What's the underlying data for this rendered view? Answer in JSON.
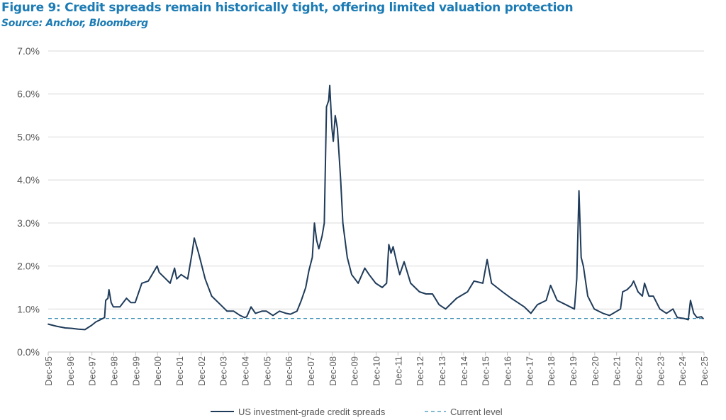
{
  "title": "Figure 9: Credit spreads remain historically tight, offering limited valuation protection",
  "subtitle": "Source: Anchor, Bloomberg",
  "chart_data": {
    "type": "line",
    "ylim": [
      0,
      7
    ],
    "yticks": [
      0,
      1,
      2,
      3,
      4,
      5,
      6,
      7
    ],
    "ytick_labels": [
      "0.0%",
      "1.0%",
      "2.0%",
      "3.0%",
      "4.0%",
      "5.0%",
      "6.0%",
      "7.0%"
    ],
    "xlim": [
      1995.92,
      2025.92
    ],
    "xtick_labels": [
      "Dec-95",
      "Dec-96",
      "Dec-97",
      "Dec-98",
      "Dec-99",
      "Dec-00",
      "Dec-01",
      "Dec-02",
      "Dec-03",
      "Dec-04",
      "Dec-05",
      "Dec-06",
      "Dec-07",
      "Dec-08",
      "Dec-09",
      "Dec-10",
      "Dec-11",
      "Dec-12",
      "Dec-13",
      "Dec-14",
      "Dec-15",
      "Dec-16",
      "Dec-17",
      "Dec-18",
      "Dec-19",
      "Dec-20",
      "Dec-21",
      "Dec-22",
      "Dec-23",
      "Dec-24",
      "Dec-25"
    ],
    "grid": "horizontal",
    "legend_position": "bottom",
    "colors": {
      "series": "#1f3b5a",
      "current": "#3a8fb7",
      "grid": "#d9d9d9"
    },
    "series": [
      {
        "name": "US investment-grade credit spreads",
        "points": [
          [
            1995.9,
            0.65
          ],
          [
            1996.3,
            0.6
          ],
          [
            1996.7,
            0.56
          ],
          [
            1997.0,
            0.55
          ],
          [
            1997.3,
            0.53
          ],
          [
            1997.6,
            0.52
          ],
          [
            1997.9,
            0.62
          ],
          [
            1998.1,
            0.7
          ],
          [
            1998.3,
            0.75
          ],
          [
            1998.5,
            0.8
          ],
          [
            1998.55,
            1.2
          ],
          [
            1998.65,
            1.25
          ],
          [
            1998.7,
            1.45
          ],
          [
            1998.8,
            1.15
          ],
          [
            1998.9,
            1.05
          ],
          [
            1999.2,
            1.05
          ],
          [
            1999.5,
            1.25
          ],
          [
            1999.7,
            1.15
          ],
          [
            1999.9,
            1.15
          ],
          [
            2000.2,
            1.6
          ],
          [
            2000.5,
            1.65
          ],
          [
            2000.9,
            2.0
          ],
          [
            2001.0,
            1.85
          ],
          [
            2001.3,
            1.7
          ],
          [
            2001.5,
            1.6
          ],
          [
            2001.7,
            1.95
          ],
          [
            2001.8,
            1.7
          ],
          [
            2002.0,
            1.8
          ],
          [
            2002.3,
            1.7
          ],
          [
            2002.5,
            2.3
          ],
          [
            2002.6,
            2.65
          ],
          [
            2002.8,
            2.3
          ],
          [
            2003.1,
            1.7
          ],
          [
            2003.4,
            1.3
          ],
          [
            2003.8,
            1.1
          ],
          [
            2004.1,
            0.95
          ],
          [
            2004.4,
            0.95
          ],
          [
            2004.7,
            0.85
          ],
          [
            2004.9,
            0.8
          ],
          [
            2005.0,
            0.82
          ],
          [
            2005.2,
            1.05
          ],
          [
            2005.4,
            0.9
          ],
          [
            2005.7,
            0.95
          ],
          [
            2005.9,
            0.95
          ],
          [
            2006.2,
            0.85
          ],
          [
            2006.5,
            0.95
          ],
          [
            2006.8,
            0.9
          ],
          [
            2007.0,
            0.88
          ],
          [
            2007.3,
            0.95
          ],
          [
            2007.5,
            1.2
          ],
          [
            2007.7,
            1.5
          ],
          [
            2007.85,
            1.9
          ],
          [
            2008.0,
            2.2
          ],
          [
            2008.1,
            3.0
          ],
          [
            2008.2,
            2.6
          ],
          [
            2008.3,
            2.4
          ],
          [
            2008.45,
            2.7
          ],
          [
            2008.55,
            3.0
          ],
          [
            2008.65,
            5.7
          ],
          [
            2008.75,
            5.85
          ],
          [
            2008.8,
            6.2
          ],
          [
            2008.9,
            5.2
          ],
          [
            2008.96,
            4.9
          ],
          [
            2009.05,
            5.5
          ],
          [
            2009.15,
            5.2
          ],
          [
            2009.3,
            4.0
          ],
          [
            2009.4,
            3.0
          ],
          [
            2009.6,
            2.2
          ],
          [
            2009.8,
            1.8
          ],
          [
            2010.1,
            1.6
          ],
          [
            2010.4,
            1.95
          ],
          [
            2010.6,
            1.8
          ],
          [
            2010.9,
            1.6
          ],
          [
            2011.2,
            1.5
          ],
          [
            2011.4,
            1.6
          ],
          [
            2011.5,
            2.5
          ],
          [
            2011.6,
            2.3
          ],
          [
            2011.7,
            2.45
          ],
          [
            2011.9,
            2.0
          ],
          [
            2012.0,
            1.8
          ],
          [
            2012.2,
            2.1
          ],
          [
            2012.5,
            1.6
          ],
          [
            2012.9,
            1.4
          ],
          [
            2013.2,
            1.35
          ],
          [
            2013.5,
            1.35
          ],
          [
            2013.8,
            1.1
          ],
          [
            2014.1,
            1.0
          ],
          [
            2014.6,
            1.25
          ],
          [
            2015.1,
            1.4
          ],
          [
            2015.4,
            1.65
          ],
          [
            2015.8,
            1.6
          ],
          [
            2016.0,
            2.15
          ],
          [
            2016.2,
            1.6
          ],
          [
            2016.7,
            1.4
          ],
          [
            2017.1,
            1.25
          ],
          [
            2017.4,
            1.15
          ],
          [
            2017.7,
            1.05
          ],
          [
            2018.0,
            0.9
          ],
          [
            2018.3,
            1.1
          ],
          [
            2018.7,
            1.2
          ],
          [
            2018.9,
            1.55
          ],
          [
            2019.2,
            1.2
          ],
          [
            2019.6,
            1.1
          ],
          [
            2019.99,
            1.0
          ],
          [
            2020.1,
            1.7
          ],
          [
            2020.2,
            3.75
          ],
          [
            2020.3,
            2.2
          ],
          [
            2020.4,
            2.0
          ],
          [
            2020.6,
            1.3
          ],
          [
            2020.9,
            1.0
          ],
          [
            2021.3,
            0.9
          ],
          [
            2021.6,
            0.85
          ],
          [
            2022.1,
            1.0
          ],
          [
            2022.2,
            1.4
          ],
          [
            2022.4,
            1.45
          ],
          [
            2022.6,
            1.55
          ],
          [
            2022.7,
            1.65
          ],
          [
            2022.9,
            1.4
          ],
          [
            2023.1,
            1.3
          ],
          [
            2023.2,
            1.6
          ],
          [
            2023.4,
            1.3
          ],
          [
            2023.6,
            1.3
          ],
          [
            2023.9,
            1.0
          ],
          [
            2024.2,
            0.9
          ],
          [
            2024.5,
            1.0
          ],
          [
            2024.7,
            0.8
          ],
          [
            2025.0,
            0.78
          ],
          [
            2025.2,
            0.75
          ],
          [
            2025.3,
            1.2
          ],
          [
            2025.45,
            0.9
          ],
          [
            2025.6,
            0.8
          ],
          [
            2025.8,
            0.82
          ],
          [
            2025.9,
            0.77
          ]
        ]
      },
      {
        "name": "Current level",
        "value": 0.78
      }
    ]
  }
}
